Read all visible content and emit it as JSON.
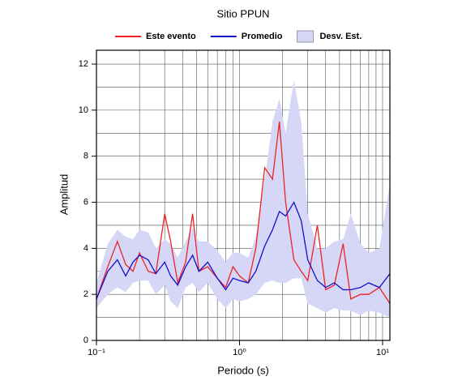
{
  "chart_data": {
    "type": "line",
    "title": "Sitio PPUN",
    "xlabel": "Periodo (s)",
    "ylabel": "Amplitud",
    "xscale": "log",
    "grid": true,
    "legend": "top",
    "xlim": [
      0.1,
      11.25
    ],
    "ylim": [
      0,
      12.6
    ],
    "xticks": [
      {
        "value": 0.1,
        "label": "10⁻¹"
      },
      {
        "value": 1,
        "label": "10⁰"
      },
      {
        "value": 10,
        "label": "10¹"
      }
    ],
    "x_minor_ticks": [
      0.2,
      0.3,
      0.4,
      0.5,
      0.6,
      0.7,
      0.8,
      0.9,
      2,
      3,
      4,
      5,
      6,
      7,
      8,
      9
    ],
    "yticks": [
      0,
      2,
      4,
      6,
      8,
      10,
      12
    ],
    "y_minor_ticks": [
      1,
      3,
      5,
      7,
      9,
      11
    ],
    "x": [
      0.1,
      0.12,
      0.14,
      0.16,
      0.18,
      0.2,
      0.23,
      0.26,
      0.3,
      0.33,
      0.37,
      0.42,
      0.47,
      0.52,
      0.6,
      0.7,
      0.8,
      0.9,
      1.0,
      1.15,
      1.3,
      1.5,
      1.7,
      1.9,
      2.1,
      2.4,
      2.7,
      3.0,
      3.5,
      4.0,
      4.6,
      5.3,
      6,
      7,
      8,
      9.5,
      11.25
    ],
    "series": [
      {
        "name": "Este evento",
        "color": "#ee2222",
        "values": [
          1.8,
          3.2,
          4.3,
          3.3,
          3.0,
          3.8,
          3.0,
          2.9,
          5.5,
          4.3,
          2.5,
          3.4,
          5.5,
          3.0,
          3.2,
          2.7,
          2.3,
          3.2,
          2.8,
          2.5,
          4.0,
          7.5,
          7.0,
          9.5,
          6.0,
          3.5,
          3.0,
          2.6,
          5.0,
          2.2,
          2.4,
          4.2,
          1.8,
          2.0,
          2.0,
          2.3,
          1.6
        ]
      },
      {
        "name": "Promedio",
        "color": "#1111cc",
        "values": [
          1.8,
          3.0,
          3.5,
          2.8,
          3.4,
          3.7,
          3.5,
          2.9,
          3.4,
          2.8,
          2.4,
          3.2,
          3.7,
          3.0,
          3.4,
          2.7,
          2.2,
          2.7,
          2.6,
          2.5,
          3.0,
          4.1,
          4.8,
          5.6,
          5.4,
          6.0,
          5.2,
          3.5,
          2.6,
          2.3,
          2.5,
          2.2,
          2.2,
          2.3,
          2.5,
          2.3,
          2.9
        ]
      },
      {
        "name": "Desv. Est.",
        "color": "#d6d6f6",
        "upper": [
          2.5,
          4.2,
          4.8,
          4.5,
          4.4,
          4.8,
          4.7,
          4.0,
          4.4,
          4.2,
          3.6,
          4.3,
          4.9,
          4.3,
          4.3,
          3.9,
          3.4,
          3.8,
          3.8,
          3.6,
          4.5,
          7.0,
          9.5,
          10.5,
          9.0,
          11.3,
          9.5,
          5.5,
          4.0,
          4.0,
          4.3,
          4.4,
          5.5,
          4.2,
          3.8,
          4.0,
          6.8
        ],
        "lower": [
          1.4,
          2.0,
          2.3,
          2.1,
          2.5,
          2.6,
          2.6,
          2.0,
          2.4,
          1.7,
          1.4,
          2.3,
          2.5,
          2.1,
          2.5,
          1.8,
          1.4,
          1.8,
          1.7,
          1.8,
          2.0,
          2.5,
          2.6,
          2.5,
          2.5,
          2.7,
          2.7,
          1.6,
          1.4,
          1.2,
          1.4,
          1.3,
          1.3,
          1.1,
          1.3,
          1.2,
          1.0
        ]
      }
    ]
  }
}
